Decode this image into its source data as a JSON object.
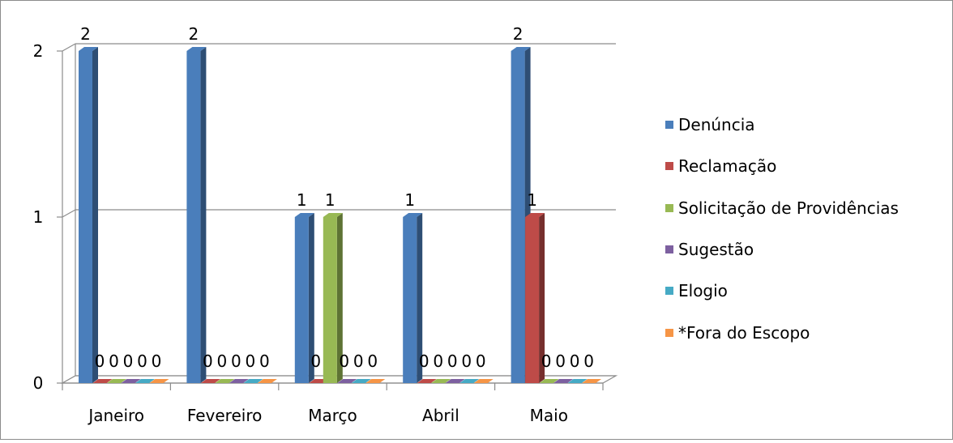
{
  "chart_data": {
    "type": "bar",
    "categories": [
      "Janeiro",
      "Fevereiro",
      "Março",
      "Abril",
      "Maio"
    ],
    "series": [
      {
        "name": "Denúncia",
        "values": [
          2,
          2,
          1,
          1,
          2
        ],
        "color": "#4a7ebb"
      },
      {
        "name": "Reclamação",
        "values": [
          0,
          0,
          0,
          0,
          1
        ],
        "color": "#be4b48"
      },
      {
        "name": "Solicitação de Providências",
        "values": [
          0,
          0,
          1,
          0,
          0
        ],
        "color": "#98b954"
      },
      {
        "name": "Sugestão",
        "values": [
          0,
          0,
          0,
          0,
          0
        ],
        "color": "#7d60a0"
      },
      {
        "name": "Elogio",
        "values": [
          0,
          0,
          0,
          0,
          0
        ],
        "color": "#46aac5"
      },
      {
        "name": "*Fora do Escopo",
        "values": [
          0,
          0,
          0,
          0,
          0
        ],
        "color": "#f69546"
      }
    ],
    "ylim": [
      0,
      2
    ],
    "yticks": [
      0,
      1,
      2
    ],
    "grid": true,
    "legend_position": "right",
    "data_labels": [
      [
        "2",
        "0",
        "0",
        "0",
        "0",
        "0"
      ],
      [
        "2",
        "0",
        "0",
        "0",
        "0",
        "0"
      ],
      [
        "1",
        "0",
        "1",
        "0",
        "0",
        "0"
      ],
      [
        "1",
        "0",
        "0",
        "0",
        "0",
        "0"
      ],
      [
        "2",
        "1",
        "0",
        "0",
        "0",
        "0"
      ]
    ]
  }
}
